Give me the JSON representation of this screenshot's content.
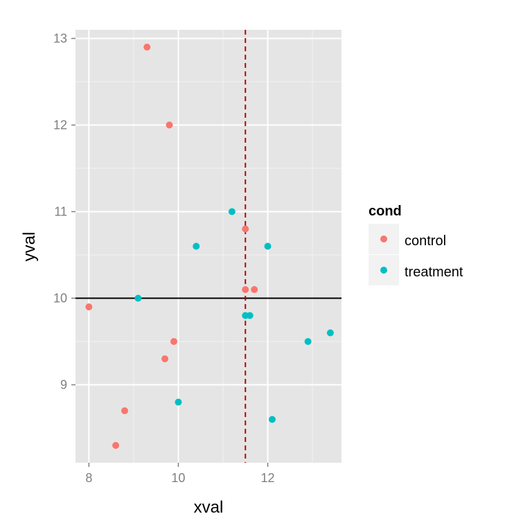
{
  "chart_data": {
    "type": "scatter",
    "xlabel": "xval",
    "ylabel": "yval",
    "xlim": [
      7.7,
      13.65
    ],
    "ylim": [
      8.1,
      13.1
    ],
    "x_ticks": [
      8,
      10,
      12
    ],
    "y_ticks": [
      9,
      10,
      11,
      12,
      13
    ],
    "x_minor_ticks": [
      9,
      11,
      13
    ],
    "y_minor_ticks": [
      9.5,
      10.5,
      11.5,
      12.5
    ],
    "grid": true,
    "legend": {
      "title": "cond",
      "position": "right",
      "entries": [
        {
          "label": "control",
          "color": "#F8766D"
        },
        {
          "label": "treatment",
          "color": "#00BFC4"
        }
      ]
    },
    "series": [
      {
        "name": "control",
        "color": "#F8766D",
        "points": [
          {
            "x": 8.0,
            "y": 9.9
          },
          {
            "x": 8.6,
            "y": 8.3
          },
          {
            "x": 8.8,
            "y": 8.7
          },
          {
            "x": 9.3,
            "y": 12.9
          },
          {
            "x": 9.7,
            "y": 9.3
          },
          {
            "x": 9.8,
            "y": 12.0
          },
          {
            "x": 9.9,
            "y": 9.5
          },
          {
            "x": 11.5,
            "y": 10.8
          },
          {
            "x": 11.5,
            "y": 10.1
          },
          {
            "x": 11.7,
            "y": 10.1
          }
        ]
      },
      {
        "name": "treatment",
        "color": "#00BFC4",
        "points": [
          {
            "x": 9.1,
            "y": 10.0
          },
          {
            "x": 10.0,
            "y": 8.8
          },
          {
            "x": 10.4,
            "y": 10.6
          },
          {
            "x": 11.2,
            "y": 11.0
          },
          {
            "x": 11.5,
            "y": 9.8
          },
          {
            "x": 11.6,
            "y": 9.8
          },
          {
            "x": 12.0,
            "y": 10.6
          },
          {
            "x": 12.1,
            "y": 8.6
          },
          {
            "x": 12.9,
            "y": 9.5
          },
          {
            "x": 13.4,
            "y": 9.6
          }
        ]
      }
    ],
    "reference_lines": [
      {
        "orientation": "horizontal",
        "value": 10,
        "color": "#000000",
        "style": "solid"
      },
      {
        "orientation": "vertical",
        "value": 11.5,
        "color": "#BB0000",
        "style": "dashed"
      }
    ]
  }
}
